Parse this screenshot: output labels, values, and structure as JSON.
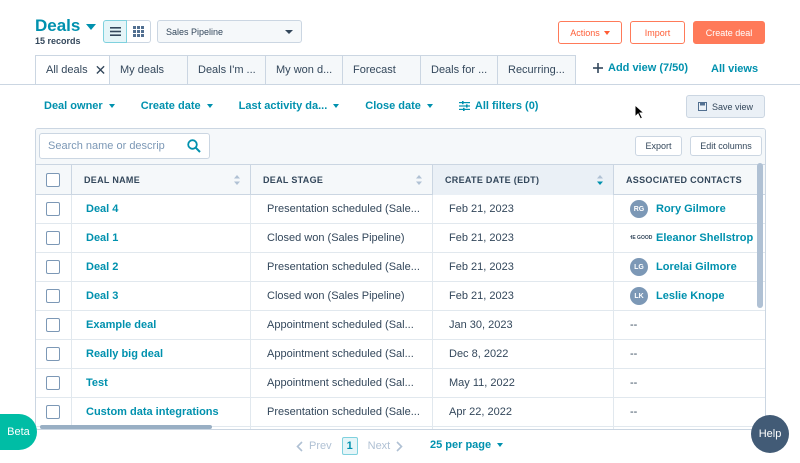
{
  "header": {
    "title": "Deals",
    "record_count": "15 records",
    "pipeline_select": "Sales Pipeline",
    "actions_label": "Actions",
    "import_label": "Import",
    "create_label": "Create deal"
  },
  "tabs": [
    {
      "label": "All deals",
      "active": true
    },
    {
      "label": "My deals"
    },
    {
      "label": "Deals I'm ..."
    },
    {
      "label": "My won d..."
    },
    {
      "label": "Forecast"
    },
    {
      "label": "Deals for ..."
    },
    {
      "label": "Recurring..."
    }
  ],
  "add_view_label": "Add view (7/50)",
  "all_views_label": "All views",
  "filters": [
    "Deal owner",
    "Create date",
    "Last activity da...",
    "Close date"
  ],
  "all_filters_label": "All filters (0)",
  "save_view_label": "Save view",
  "toolbar": {
    "search_placeholder": "Search name or descrip",
    "export_label": "Export",
    "edit_columns_label": "Edit columns"
  },
  "columns": [
    "DEAL NAME",
    "DEAL STAGE",
    "CREATE DATE (EDT)",
    "ASSOCIATED CONTACTS"
  ],
  "rows": [
    {
      "name": "Deal 4",
      "stage": "Presentation scheduled (Sale...",
      "date": "Feb 21, 2023",
      "contact": "Rory Gilmore",
      "initials": "RG"
    },
    {
      "name": "Deal 1",
      "stage": "Closed won (Sales Pipeline)",
      "date": "Feb 21, 2023",
      "contact": "Eleanor Shellstrop",
      "initials": "THE GOOD"
    },
    {
      "name": "Deal 2",
      "stage": "Presentation scheduled (Sale...",
      "date": "Feb 21, 2023",
      "contact": "Lorelai Gilmore",
      "initials": "LG"
    },
    {
      "name": "Deal 3",
      "stage": "Closed won (Sales Pipeline)",
      "date": "Feb 21, 2023",
      "contact": "Leslie Knope",
      "initials": "LK"
    },
    {
      "name": "Example deal",
      "stage": "Appointment scheduled (Sal...",
      "date": "Jan 30, 2023",
      "contact": "--",
      "initials": ""
    },
    {
      "name": "Really big deal",
      "stage": "Appointment scheduled (Sal...",
      "date": "Dec 8, 2022",
      "contact": "--",
      "initials": ""
    },
    {
      "name": "Test",
      "stage": "Appointment scheduled (Sal...",
      "date": "May 11, 2022",
      "contact": "--",
      "initials": ""
    },
    {
      "name": "Custom data integrations",
      "stage": "Presentation scheduled (Sale...",
      "date": "Apr 22, 2022",
      "contact": "--",
      "initials": ""
    }
  ],
  "pagination": {
    "prev": "Prev",
    "page": "1",
    "next": "Next",
    "per_page": "25 per page"
  },
  "beta_label": "Beta",
  "help_label": "Help",
  "colors": {
    "accent": "#0091ae",
    "orange": "#ff7a59",
    "beta": "#00bda5",
    "help": "#425b76"
  }
}
